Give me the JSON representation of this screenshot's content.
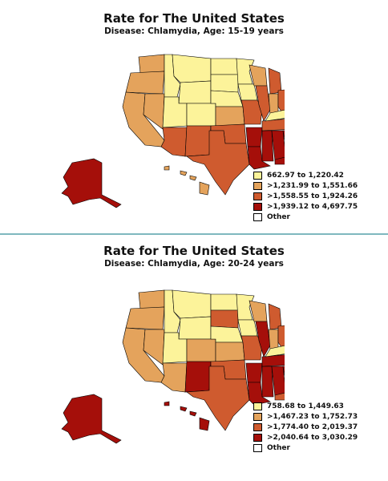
{
  "colors": {
    "c1": "#fcf39a",
    "c2": "#e4a35c",
    "c3": "#cf5b2f",
    "c4": "#a50f0a",
    "other": "#ffffff"
  },
  "maps": [
    {
      "title": "Rate for The United States",
      "subtitle": "Disease: Chlamydia, Age: 15-19 years",
      "legend": [
        {
          "label": "662.97 to 1,220.42",
          "color_key": "c1"
        },
        {
          "label": ">1,231.99 to 1,551.66",
          "color_key": "c2"
        },
        {
          "label": ">1,558.55 to 1,924.26",
          "color_key": "c3"
        },
        {
          "label": ">1,939.12 to 4,697.75",
          "color_key": "c4"
        },
        {
          "label": "Other",
          "color_key": "other"
        }
      ]
    },
    {
      "title": "Rate for The United States",
      "subtitle": "Disease: Chlamydia, Age: 20-24 years",
      "legend": [
        {
          "label": "758.68 to 1,449.63",
          "color_key": "c1"
        },
        {
          "label": ">1,467.23 to 1,752.73",
          "color_key": "c2"
        },
        {
          "label": ">1,774.40 to 2,019.37",
          "color_key": "c3"
        },
        {
          "label": ">2,040.64 to 3,030.29",
          "color_key": "c4"
        },
        {
          "label": "Other",
          "color_key": "other"
        }
      ]
    }
  ]
}
